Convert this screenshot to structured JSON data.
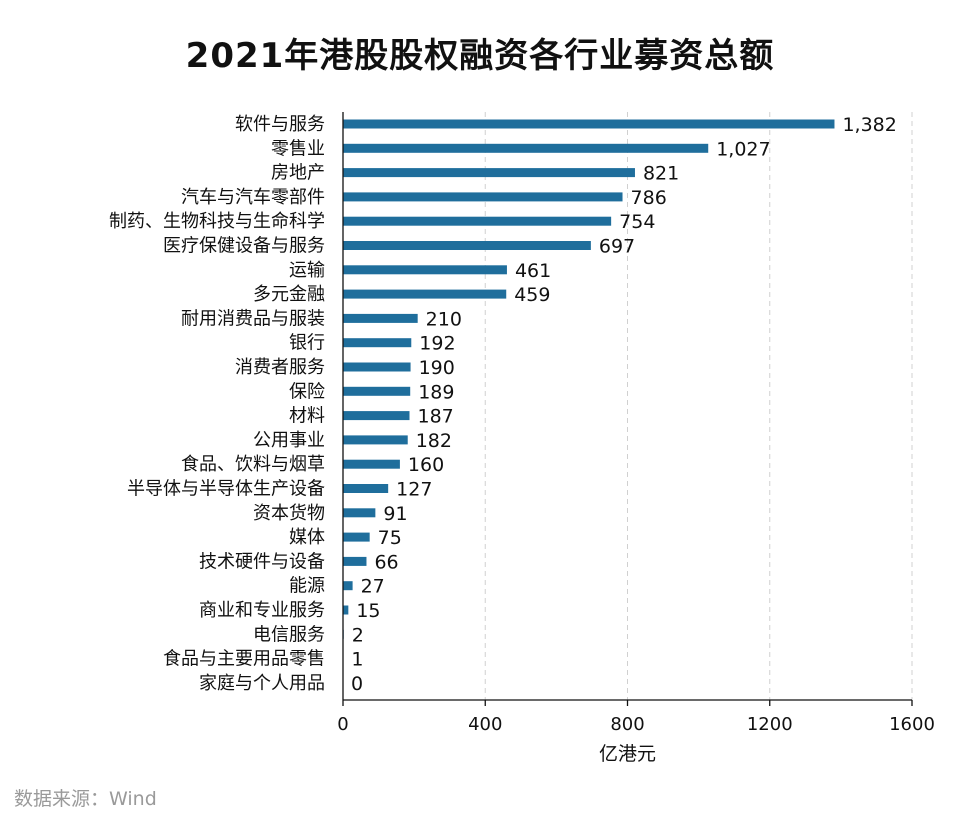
{
  "title": "2021年港股股权融资各行业募资总额",
  "source": "数据来源：Wind",
  "colors": {
    "bar": "#1f6e9c",
    "grid": "#d0d0d0",
    "axis": "#111111"
  },
  "chart_data": {
    "type": "bar",
    "orientation": "horizontal",
    "title": "2021年港股股权融资各行业募资总额",
    "xlabel": "亿港元",
    "ylabel": "",
    "xlim": [
      0,
      1600
    ],
    "xticks": [
      0,
      400,
      800,
      1200,
      1600
    ],
    "xtick_labels": [
      "0",
      "400",
      "800",
      "1200",
      "1600"
    ],
    "grid": "vertical dashed",
    "categories": [
      "软件与服务",
      "零售业",
      "房地产",
      "汽车与汽车零部件",
      "制药、生物科技与生命科学",
      "医疗保健设备与服务",
      "运输",
      "多元金融",
      "耐用消费品与服装",
      "银行",
      "消费者服务",
      "保险",
      "材料",
      "公用事业",
      "食品、饮料与烟草",
      "半导体与半导体生产设备",
      "资本货物",
      "媒体",
      "技术硬件与设备",
      "能源",
      "商业和专业服务",
      "电信服务",
      "食品与主要用品零售",
      "家庭与个人用品"
    ],
    "values": [
      1382,
      1027,
      821,
      786,
      754,
      697,
      461,
      459,
      210,
      192,
      190,
      189,
      187,
      182,
      160,
      127,
      91,
      75,
      66,
      27,
      15,
      2,
      1,
      0
    ],
    "value_labels": [
      "1,382",
      "1,027",
      "821",
      "786",
      "754",
      "697",
      "461",
      "459",
      "210",
      "192",
      "190",
      "189",
      "187",
      "182",
      "160",
      "127",
      "91",
      "75",
      "66",
      "27",
      "15",
      "2",
      "1",
      "0"
    ]
  }
}
